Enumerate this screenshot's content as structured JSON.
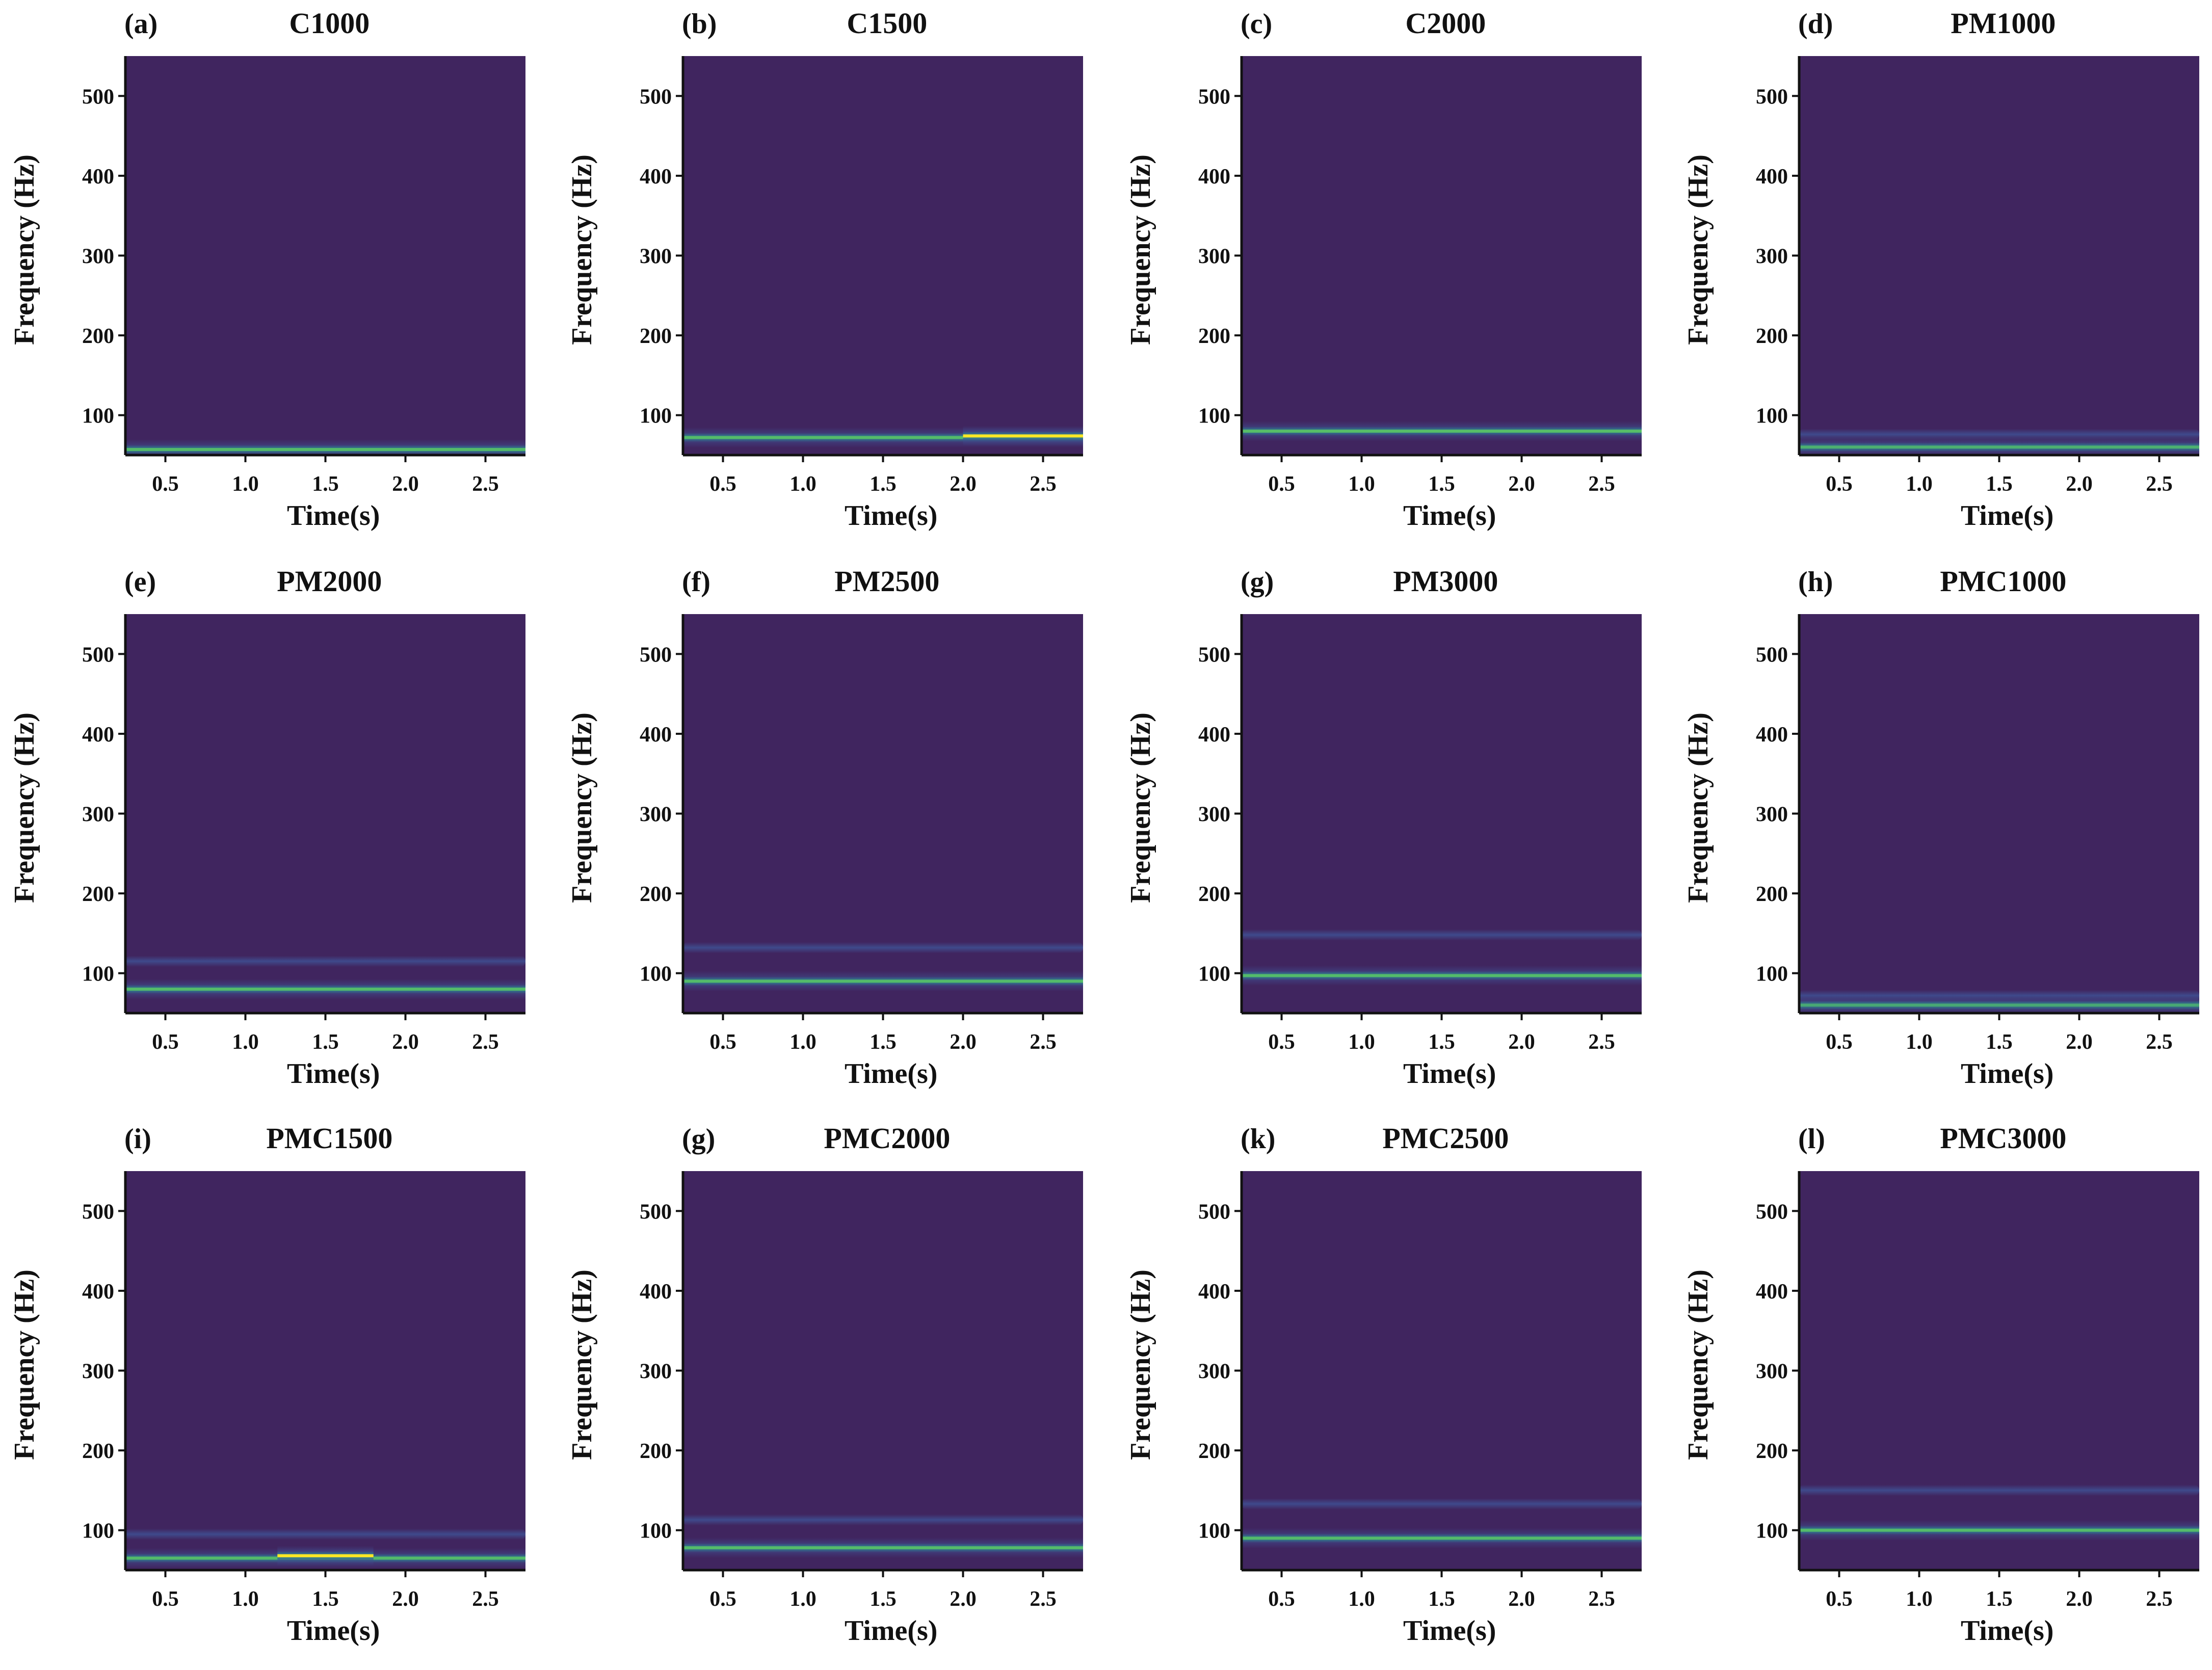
{
  "figure": {
    "colors": {
      "background": "#40255f",
      "band_weak": "#3f4c8e",
      "band_mid": "#2a8b8c",
      "band_strong": "#5ec962",
      "band_peak": "#fde725",
      "axis": "#111111"
    },
    "shared_axes": {
      "xlabel": "Time(s)",
      "ylabel": "Frequency (Hz)",
      "xlim": [
        0.25,
        2.75
      ],
      "ylim": [
        50,
        550
      ],
      "xticks": [
        0.5,
        1.0,
        1.5,
        2.0,
        2.5
      ],
      "xtick_labels": [
        "0.5",
        "1.0",
        "1.5",
        "2.0",
        "2.5"
      ],
      "yticks": [
        100,
        200,
        300,
        400,
        500
      ],
      "ytick_labels": [
        "100",
        "200",
        "300",
        "400",
        "500"
      ]
    }
  },
  "chart_data": [
    {
      "type": "heatmap",
      "letter": "(a)",
      "title": "C1000",
      "xlabel": "Time(s)",
      "ylabel": "Frequency (Hz)",
      "xlim": [
        0.25,
        2.75
      ],
      "ylim": [
        50,
        550
      ],
      "bands": [
        {
          "freq": 57,
          "intensity": 0.7
        }
      ]
    },
    {
      "type": "heatmap",
      "letter": "(b)",
      "title": "C1500",
      "xlabel": "Time(s)",
      "ylabel": "Frequency (Hz)",
      "xlim": [
        0.25,
        2.75
      ],
      "ylim": [
        50,
        550
      ],
      "bands": [
        {
          "freq": 72,
          "intensity": 0.7
        },
        {
          "freq": 74,
          "intensity": 0.9,
          "t_start": 2.0,
          "t_end": 2.75
        }
      ]
    },
    {
      "type": "heatmap",
      "letter": "(c)",
      "title": "C2000",
      "xlabel": "Time(s)",
      "ylabel": "Frequency (Hz)",
      "xlim": [
        0.25,
        2.75
      ],
      "ylim": [
        50,
        550
      ],
      "bands": [
        {
          "freq": 80,
          "intensity": 0.75
        }
      ]
    },
    {
      "type": "heatmap",
      "letter": "(d)",
      "title": "PM1000",
      "xlabel": "Time(s)",
      "ylabel": "Frequency (Hz)",
      "xlim": [
        0.25,
        2.75
      ],
      "ylim": [
        50,
        550
      ],
      "bands": [
        {
          "freq": 76,
          "intensity": 0.2
        },
        {
          "freq": 60,
          "intensity": 0.55
        }
      ]
    },
    {
      "type": "heatmap",
      "letter": "(e)",
      "title": "PM2000",
      "xlabel": "Time(s)",
      "ylabel": "Frequency (Hz)",
      "xlim": [
        0.25,
        2.75
      ],
      "ylim": [
        50,
        550
      ],
      "bands": [
        {
          "freq": 115,
          "intensity": 0.2
        },
        {
          "freq": 80,
          "intensity": 0.7
        }
      ]
    },
    {
      "type": "heatmap",
      "letter": "(f)",
      "title": "PM2500",
      "xlabel": "Time(s)",
      "ylabel": "Frequency (Hz)",
      "xlim": [
        0.25,
        2.75
      ],
      "ylim": [
        50,
        550
      ],
      "bands": [
        {
          "freq": 132,
          "intensity": 0.2
        },
        {
          "freq": 90,
          "intensity": 0.7
        }
      ]
    },
    {
      "type": "heatmap",
      "letter": "(g)",
      "title": "PM3000",
      "xlabel": "Time(s)",
      "ylabel": "Frequency (Hz)",
      "xlim": [
        0.25,
        2.75
      ],
      "ylim": [
        50,
        550
      ],
      "bands": [
        {
          "freq": 148,
          "intensity": 0.2
        },
        {
          "freq": 97,
          "intensity": 0.7
        }
      ]
    },
    {
      "type": "heatmap",
      "letter": "(h)",
      "title": "PMC1000",
      "xlabel": "Time(s)",
      "ylabel": "Frequency (Hz)",
      "xlim": [
        0.25,
        2.75
      ],
      "ylim": [
        50,
        550
      ],
      "bands": [
        {
          "freq": 72,
          "intensity": 0.2
        },
        {
          "freq": 60,
          "intensity": 0.45
        }
      ]
    },
    {
      "type": "heatmap",
      "letter": "(i)",
      "title": "PMC1500",
      "xlabel": "Time(s)",
      "ylabel": "Frequency (Hz)",
      "xlim": [
        0.25,
        2.75
      ],
      "ylim": [
        50,
        550
      ],
      "bands": [
        {
          "freq": 95,
          "intensity": 0.2
        },
        {
          "freq": 65,
          "intensity": 0.7
        },
        {
          "freq": 68,
          "intensity": 1.0,
          "t_start": 1.2,
          "t_end": 1.8
        }
      ]
    },
    {
      "type": "heatmap",
      "letter": "(g)",
      "title": "PMC2000",
      "xlabel": "Time(s)",
      "ylabel": "Frequency (Hz)",
      "xlim": [
        0.25,
        2.75
      ],
      "ylim": [
        50,
        550
      ],
      "bands": [
        {
          "freq": 113,
          "intensity": 0.2
        },
        {
          "freq": 78,
          "intensity": 0.7
        }
      ]
    },
    {
      "type": "heatmap",
      "letter": "(k)",
      "title": "PMC2500",
      "xlabel": "Time(s)",
      "ylabel": "Frequency (Hz)",
      "xlim": [
        0.25,
        2.75
      ],
      "ylim": [
        50,
        550
      ],
      "bands": [
        {
          "freq": 133,
          "intensity": 0.2
        },
        {
          "freq": 90,
          "intensity": 0.7
        }
      ]
    },
    {
      "type": "heatmap",
      "letter": "(l)",
      "title": "PMC3000",
      "xlabel": "Time(s)",
      "ylabel": "Frequency (Hz)",
      "xlim": [
        0.25,
        2.75
      ],
      "ylim": [
        50,
        550
      ],
      "bands": [
        {
          "freq": 150,
          "intensity": 0.25
        },
        {
          "freq": 100,
          "intensity": 0.7
        }
      ]
    }
  ]
}
